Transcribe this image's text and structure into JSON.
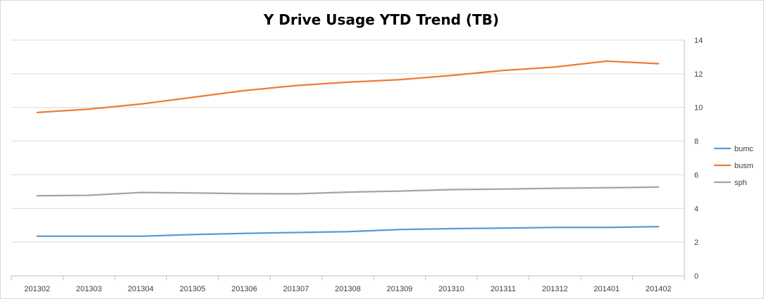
{
  "chart_data": {
    "type": "line",
    "title": "Y Drive Usage YTD Trend (TB)",
    "xlabel": "",
    "ylabel": "",
    "categories": [
      "201302",
      "201303",
      "201304",
      "201305",
      "201306",
      "201307",
      "201308",
      "201309",
      "201310",
      "201311",
      "201312",
      "201401",
      "201402"
    ],
    "ylim": [
      0,
      14
    ],
    "yticks": [
      0,
      2,
      4,
      6,
      8,
      10,
      12,
      14
    ],
    "y_axis_side": "right",
    "grid": true,
    "legend_position": "right",
    "series": [
      {
        "name": "bumc",
        "color": "#5b9bd5",
        "values": [
          2.35,
          2.35,
          2.35,
          2.45,
          2.52,
          2.57,
          2.62,
          2.75,
          2.8,
          2.83,
          2.87,
          2.87,
          2.92
        ]
      },
      {
        "name": "busm",
        "color": "#ed7d31",
        "values": [
          9.7,
          9.9,
          10.2,
          10.6,
          11.0,
          11.3,
          11.5,
          11.65,
          11.9,
          12.2,
          12.4,
          12.75,
          12.6
        ]
      },
      {
        "name": "sph",
        "color": "#a5a5a5",
        "values": [
          4.75,
          4.78,
          4.95,
          4.92,
          4.88,
          4.87,
          4.97,
          5.03,
          5.12,
          5.15,
          5.2,
          5.23,
          5.27
        ]
      }
    ]
  }
}
